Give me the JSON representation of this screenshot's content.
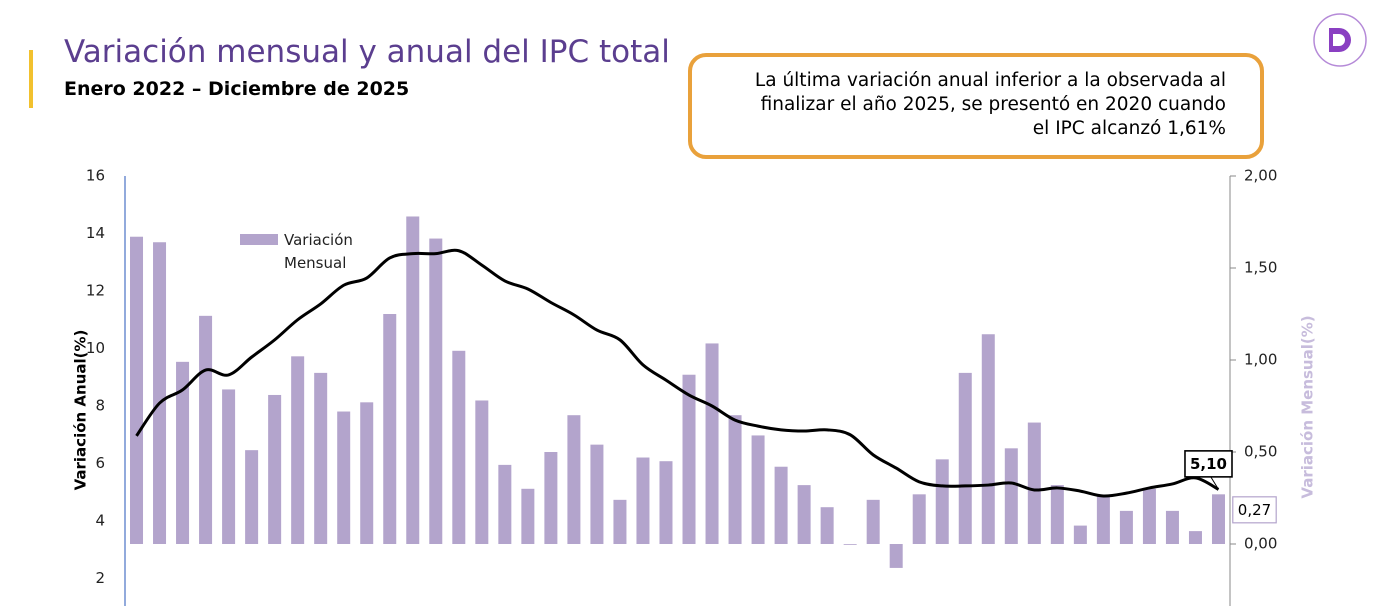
{
  "header": {
    "title": "Variación mensual y anual del IPC total",
    "subtitle": "Enero 2022 – Diciembre de 2025",
    "annotation": [
      "La última variación anual inferior  a la observada al",
      "finalizar el año 2025, se presentó en 2020 cuando",
      "el IPC alcanzó 1,61%"
    ]
  },
  "chart_data": {
    "type": "bar-line",
    "ylabel": "Variación Anual(%)",
    "y2label": "Variación Mensual(%)",
    "ylim": [
      0,
      16
    ],
    "yticks": [
      2,
      4,
      6,
      8,
      10,
      12,
      14,
      16
    ],
    "y2lim": [
      -0.5,
      2.0
    ],
    "y2ticks": [
      {
        "value": 0,
        "label": "0,00"
      },
      {
        "value": 0.5,
        "label": "0,50"
      },
      {
        "value": 1.0,
        "label": "1,00"
      },
      {
        "value": 1.5,
        "label": "1,50"
      },
      {
        "value": 2.0,
        "label": "2,00"
      }
    ],
    "grid": false,
    "series": [
      {
        "name": "Variación Mensual",
        "type": "bar",
        "axis": "y2",
        "color": "#b3a4cc",
        "values": [
          1.67,
          1.64,
          0.99,
          1.24,
          0.84,
          0.51,
          0.81,
          1.02,
          0.93,
          0.72,
          0.77,
          1.25,
          1.78,
          1.66,
          1.05,
          0.78,
          0.43,
          0.3,
          0.5,
          0.7,
          0.54,
          0.24,
          0.47,
          0.45,
          0.92,
          1.09,
          0.7,
          0.59,
          0.42,
          0.32,
          0.2,
          0.0,
          0.24,
          -0.13,
          0.27,
          0.46,
          0.93,
          1.14,
          0.52,
          0.66,
          0.32,
          0.1,
          0.26,
          0.18,
          0.3,
          0.18,
          0.07,
          0.27
        ],
        "value_labels": [
          null,
          null,
          null,
          null,
          null,
          null,
          null,
          null,
          null,
          null,
          null,
          null,
          null,
          null,
          null,
          null,
          null,
          null,
          null,
          null,
          null,
          null,
          null,
          null,
          null,
          null,
          null,
          null,
          null,
          null,
          null,
          null,
          null,
          null,
          null,
          null,
          null,
          null,
          null,
          null,
          null,
          null,
          null,
          null,
          null,
          null,
          null,
          "0,27"
        ]
      },
      {
        "type": "line",
        "color": "#000000",
        "values": [
          6.96,
          8.1,
          8.56,
          9.25,
          9.08,
          9.7,
          10.3,
          11.0,
          11.55,
          12.2,
          12.45,
          13.15,
          13.3,
          13.3,
          13.4,
          12.9,
          12.35,
          12.07,
          11.6,
          11.17,
          10.64,
          10.3,
          9.43,
          8.9,
          8.38,
          8.0,
          7.51,
          7.3,
          7.17,
          7.13,
          7.17,
          7.0,
          6.3,
          5.84,
          5.36,
          5.22,
          5.22,
          5.25,
          5.32,
          5.08,
          5.15,
          5.04,
          4.87,
          4.97,
          5.15,
          5.29,
          5.5,
          5.1
        ],
        "value_labels": [
          null,
          null,
          null,
          null,
          null,
          null,
          null,
          null,
          null,
          null,
          null,
          null,
          null,
          null,
          null,
          null,
          null,
          null,
          null,
          null,
          null,
          null,
          null,
          null,
          null,
          null,
          null,
          null,
          null,
          null,
          null,
          null,
          null,
          null,
          null,
          null,
          null,
          null,
          null,
          null,
          null,
          null,
          null,
          null,
          null,
          null,
          null,
          "5,10"
        ]
      }
    ]
  }
}
